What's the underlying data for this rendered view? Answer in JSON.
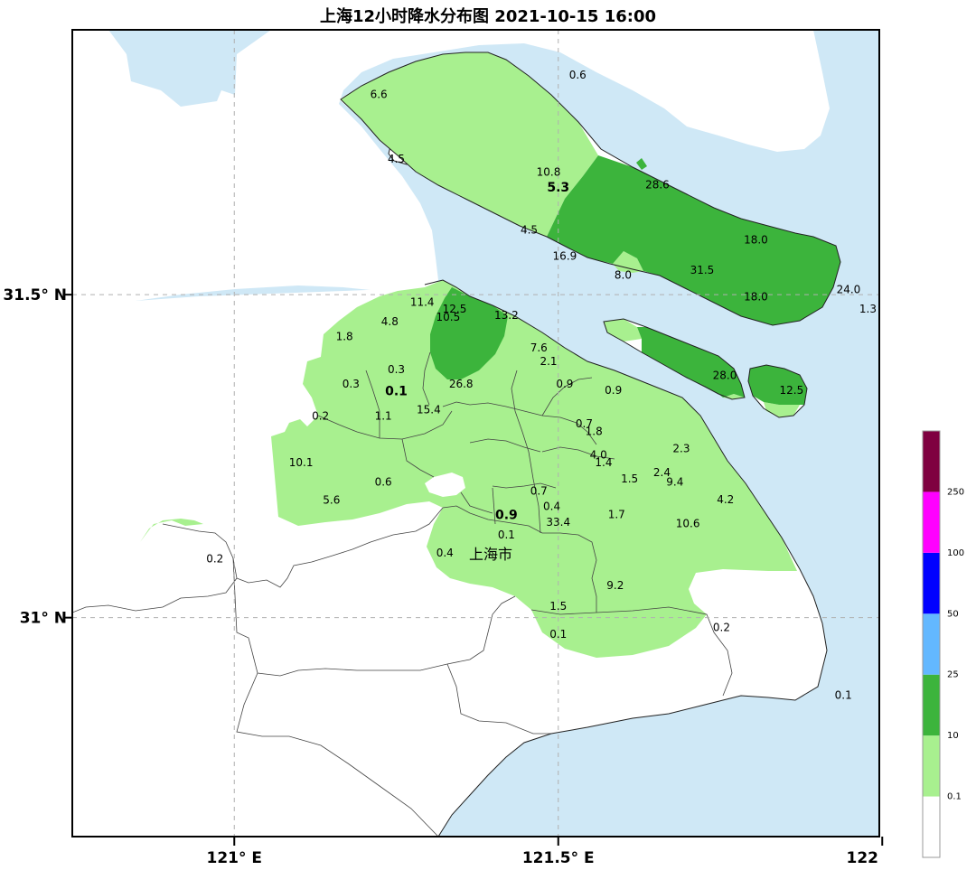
{
  "title": "上海12小时降水分布图 2021-10-15 16:00",
  "axes": {
    "x_ticks": [
      {
        "label": "121° E",
        "lon": 121.0
      },
      {
        "label": "121.5° E",
        "lon": 121.5
      },
      {
        "label": "122",
        "lon": 122.0
      }
    ],
    "y_ticks": [
      {
        "label": "31.5° N",
        "lat": 31.5
      },
      {
        "label": "31° N",
        "lat": 31.0
      }
    ]
  },
  "city_label": "上海市",
  "colors": {
    "water": "#cfe8f6",
    "land": "#ffffff",
    "light_green": "#a8f08f",
    "dark_green": "#3cb43c",
    "blue_light": "#63b8ff",
    "blue": "#0000ff",
    "magenta": "#ff00ff",
    "maroon": "#7f0040"
  },
  "legend": {
    "levels": [
      {
        "label": "0.1",
        "color": "#ffffff"
      },
      {
        "label": "10",
        "color": "#a8f08f"
      },
      {
        "label": "25",
        "color": "#3cb43c"
      },
      {
        "label": "50",
        "color": "#63b8ff"
      },
      {
        "label": "100",
        "color": "#0000ff"
      },
      {
        "label": "250",
        "color": "#ff00ff"
      },
      {
        "label": "",
        "color": "#7f0040"
      }
    ]
  },
  "stations": [
    {
      "v": "0.6",
      "lon": 121.53,
      "lat": 31.84
    },
    {
      "v": "6.6",
      "lon": 121.223,
      "lat": 31.81
    },
    {
      "v": "4.5",
      "lon": 121.25,
      "lat": 31.71
    },
    {
      "v": "10.8",
      "lon": 121.485,
      "lat": 31.69
    },
    {
      "v": "5.3",
      "lon": 121.5,
      "lat": 31.665,
      "bold": true
    },
    {
      "v": "28.6",
      "lon": 121.653,
      "lat": 31.67
    },
    {
      "v": "4.5",
      "lon": 121.455,
      "lat": 31.6
    },
    {
      "v": "16.9",
      "lon": 121.51,
      "lat": 31.56
    },
    {
      "v": "18.0",
      "lon": 121.805,
      "lat": 31.585
    },
    {
      "v": "8.0",
      "lon": 121.6,
      "lat": 31.53
    },
    {
      "v": "31.5",
      "lon": 121.722,
      "lat": 31.538
    },
    {
      "v": "24.0",
      "lon": 121.948,
      "lat": 31.508
    },
    {
      "v": "18.0",
      "lon": 121.805,
      "lat": 31.497
    },
    {
      "v": "1.3",
      "lon": 121.978,
      "lat": 31.478
    },
    {
      "v": "11.4",
      "lon": 121.29,
      "lat": 31.488
    },
    {
      "v": "12.5",
      "lon": 121.34,
      "lat": 31.478
    },
    {
      "v": "10.5",
      "lon": 121.33,
      "lat": 31.465
    },
    {
      "v": "13.2",
      "lon": 121.42,
      "lat": 31.468
    },
    {
      "v": "4.8",
      "lon": 121.24,
      "lat": 31.458
    },
    {
      "v": "1.8",
      "lon": 121.17,
      "lat": 31.435
    },
    {
      "v": "7.6",
      "lon": 121.47,
      "lat": 31.418
    },
    {
      "v": "2.1",
      "lon": 121.485,
      "lat": 31.397
    },
    {
      "v": "0.3",
      "lon": 121.25,
      "lat": 31.384
    },
    {
      "v": "0.3",
      "lon": 121.18,
      "lat": 31.362
    },
    {
      "v": "0.1",
      "lon": 121.25,
      "lat": 31.35,
      "bold": true
    },
    {
      "v": "26.8",
      "lon": 121.35,
      "lat": 31.362
    },
    {
      "v": "0.9",
      "lon": 121.51,
      "lat": 31.362
    },
    {
      "v": "0.9",
      "lon": 121.585,
      "lat": 31.352
    },
    {
      "v": "28.0",
      "lon": 121.757,
      "lat": 31.375
    },
    {
      "v": "12.5",
      "lon": 121.86,
      "lat": 31.352
    },
    {
      "v": "15.4",
      "lon": 121.3,
      "lat": 31.322
    },
    {
      "v": "0.2",
      "lon": 121.133,
      "lat": 31.312
    },
    {
      "v": "1.1",
      "lon": 121.23,
      "lat": 31.312
    },
    {
      "v": "0.7",
      "lon": 121.54,
      "lat": 31.3
    },
    {
      "v": "1.8",
      "lon": 121.555,
      "lat": 31.288
    },
    {
      "v": "2.3",
      "lon": 121.69,
      "lat": 31.262
    },
    {
      "v": "4.0",
      "lon": 121.562,
      "lat": 31.252
    },
    {
      "v": "1.4",
      "lon": 121.57,
      "lat": 31.24
    },
    {
      "v": "10.1",
      "lon": 121.103,
      "lat": 31.24
    },
    {
      "v": "2.4",
      "lon": 121.66,
      "lat": 31.225
    },
    {
      "v": "1.5",
      "lon": 121.61,
      "lat": 31.215
    },
    {
      "v": "9.4",
      "lon": 121.68,
      "lat": 31.21
    },
    {
      "v": "0.6",
      "lon": 121.23,
      "lat": 31.21
    },
    {
      "v": "0.7",
      "lon": 121.47,
      "lat": 31.196
    },
    {
      "v": "5.6",
      "lon": 121.15,
      "lat": 31.182
    },
    {
      "v": "4.2",
      "lon": 121.758,
      "lat": 31.183
    },
    {
      "v": "0.4",
      "lon": 121.49,
      "lat": 31.172
    },
    {
      "v": "0.9",
      "lon": 121.42,
      "lat": 31.158,
      "bold": true
    },
    {
      "v": "1.7",
      "lon": 121.59,
      "lat": 31.16
    },
    {
      "v": "33.4",
      "lon": 121.5,
      "lat": 31.148
    },
    {
      "v": "10.6",
      "lon": 121.7,
      "lat": 31.146
    },
    {
      "v": "0.1",
      "lon": 121.42,
      "lat": 31.128
    },
    {
      "v": "0.4",
      "lon": 121.325,
      "lat": 31.1
    },
    {
      "v": "0.2",
      "lon": 120.97,
      "lat": 31.091
    },
    {
      "v": "9.2",
      "lon": 121.588,
      "lat": 31.05
    },
    {
      "v": "1.5",
      "lon": 121.5,
      "lat": 31.018
    },
    {
      "v": "0.2",
      "lon": 121.752,
      "lat": 30.985
    },
    {
      "v": "0.1",
      "lon": 121.5,
      "lat": 30.974
    },
    {
      "v": "0.1",
      "lon": 121.94,
      "lat": 30.88
    }
  ]
}
